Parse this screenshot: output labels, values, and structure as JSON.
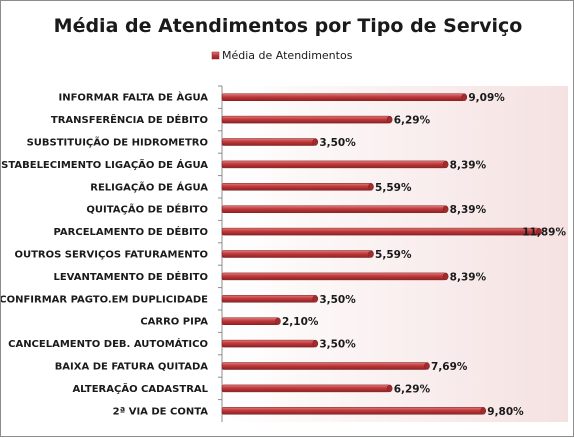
{
  "chart_data": {
    "type": "bar",
    "orientation": "horizontal",
    "title": "Média de Atendimentos por Tipo de Serviço",
    "legend": {
      "position": "top",
      "entries": [
        "Média de Atendimentos"
      ]
    },
    "categories": [
      "INFORMAR FALTA DE ÀGUA",
      "TRANSFERÊNCIA DE DÉBITO",
      "SUBSTITUIÇÃO DE HIDROMETRO",
      "RESTABELECIMENTO LIGAÇÃO DE ÁGUA",
      "RELIGAÇÃO DE ÁGUA",
      "QUITAÇÃO DE DÉBITO",
      "PARCELAMENTO DE DÉBITO",
      "OUTROS SERVIÇOS FATURAMENTO",
      "LEVANTAMENTO DE DÉBITO",
      "CONFIRMAR PAGTO.EM DUPLICIDADE",
      "CARRO PIPA",
      "CANCELAMENTO DEB. AUTOMÁTICO",
      "BAIXA DE FATURA QUITADA",
      "ALTERAÇÃO CADASTRAL",
      "2ª  VIA DE CONTA"
    ],
    "series": [
      {
        "name": "Média de Atendimentos",
        "values": [
          9.09,
          6.29,
          3.5,
          8.39,
          5.59,
          8.39,
          11.89,
          5.59,
          8.39,
          3.5,
          2.1,
          3.5,
          7.69,
          6.29,
          9.8
        ],
        "labels": [
          "9,09%",
          "6,29%",
          "3,50%",
          "8,39%",
          "5,59%",
          "8,39%",
          "11,89%",
          "5,59%",
          "8,39%",
          "3,50%",
          "2,10%",
          "3,50%",
          "7,69%",
          "6,29%",
          "9,80%"
        ],
        "color": "#c0393b"
      }
    ],
    "xlim": [
      0,
      11.89
    ],
    "grid": false,
    "plot_background": "#f7e6e6"
  }
}
